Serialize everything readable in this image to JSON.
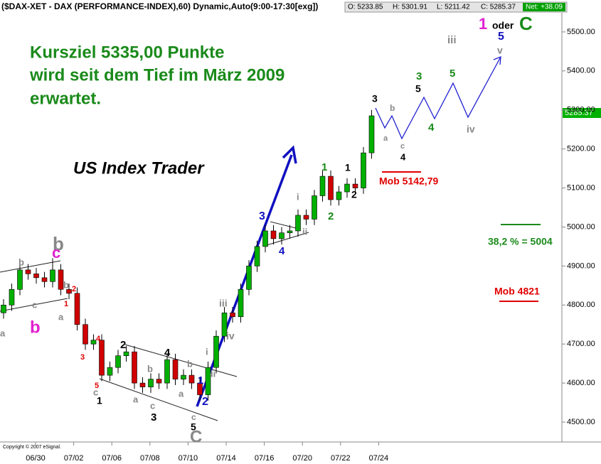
{
  "chart_data": {
    "type": "candlestick",
    "title": "($DAX-XET - DAX (PERFORMANCE-INDEX),60) Dynamic,Auto(9:00-17:30[exg])",
    "quote": [
      "O: 5233.85",
      "H: 5301.91",
      "L: 5211.42",
      "C: 5285.37",
      "Net: +38.09"
    ],
    "last_price": "5285.37",
    "copyright": "Copyright © 2007 eSignal.",
    "categories": [
      "06/30",
      "07/02",
      "07/06",
      "07/08",
      "07/10",
      "07/14",
      "07/16",
      "07/20",
      "07/22",
      "07/24"
    ],
    "up_color": "#00b000",
    "down_color": "#d00000",
    "open": [
      4780,
      4800,
      4840,
      4890,
      4880,
      4870,
      4860,
      4890,
      4840,
      4830,
      4750,
      4700,
      4710,
      4620,
      4640,
      4670,
      4680,
      4600,
      4590,
      4610,
      4600,
      4660,
      4610,
      4620,
      4600,
      4570,
      4640,
      4720,
      4780,
      4770,
      4840,
      4900,
      4950,
      4990,
      4970,
      4985,
      4990,
      5030,
      5020,
      5080,
      5130,
      5070,
      5090,
      5110,
      5100,
      5190
    ],
    "high": [
      4815,
      4855,
      4905,
      4905,
      4895,
      4885,
      4920,
      4905,
      4855,
      4845,
      4765,
      4725,
      4725,
      4655,
      4685,
      4695,
      4695,
      4615,
      4625,
      4625,
      4675,
      4675,
      4635,
      4635,
      4615,
      4655,
      4735,
      4795,
      4795,
      4855,
      4915,
      4965,
      5005,
      5005,
      5000,
      5005,
      5045,
      5045,
      5095,
      5145,
      5145,
      5105,
      5125,
      5125,
      5205,
      5300
    ],
    "low": [
      4765,
      4785,
      4825,
      4865,
      4855,
      4845,
      4845,
      4825,
      4815,
      4735,
      4685,
      4685,
      4605,
      4605,
      4625,
      4655,
      4585,
      4575,
      4575,
      4585,
      4585,
      4595,
      4595,
      4585,
      4555,
      4555,
      4625,
      4705,
      4755,
      4755,
      4825,
      4885,
      4935,
      4955,
      4955,
      4970,
      4975,
      5005,
      5005,
      5065,
      5055,
      5055,
      5075,
      5085,
      5085,
      5175
    ],
    "close": [
      4800,
      4840,
      4890,
      4880,
      4870,
      4860,
      4890,
      4840,
      4830,
      4750,
      4700,
      4710,
      4620,
      4640,
      4670,
      4680,
      4600,
      4590,
      4610,
      4600,
      4660,
      4610,
      4620,
      4600,
      4570,
      4640,
      4720,
      4780,
      4770,
      4840,
      4900,
      4950,
      4990,
      4970,
      4985,
      4990,
      5030,
      5020,
      5080,
      5130,
      5070,
      5090,
      5110,
      5100,
      5190,
      5285
    ],
    "ylim": [
      4449,
      5549
    ],
    "yticks": [
      {
        "value": 4500,
        "label": "4500.00"
      },
      {
        "value": 4600,
        "label": "4600.00"
      },
      {
        "value": 4700,
        "label": "4700.00"
      },
      {
        "value": 4800,
        "label": "4800.00"
      },
      {
        "value": 4900,
        "label": "4900.00"
      },
      {
        "value": 5000,
        "label": "5000.00"
      },
      {
        "value": 5100,
        "label": "5100.00"
      },
      {
        "value": 5200,
        "label": "5200.00"
      },
      {
        "value": 5300,
        "label": "5300.00"
      },
      {
        "value": 5400,
        "label": "5400.00"
      },
      {
        "value": 5500,
        "label": "5500.00"
      }
    ],
    "annotations": [
      "Kursziel 5335,00 Punkte",
      "wird seit dem Tief im März 2009",
      "erwartet.",
      "US Index Trader",
      "Mob 5142,79",
      "38,2 % = 5004",
      "Mob 4821",
      "1",
      "oder",
      "C",
      "5",
      "v",
      "iii",
      "5",
      "3",
      "5",
      "3",
      "a",
      "b",
      "c",
      "4",
      "4",
      "iv",
      "1",
      "1",
      "2",
      "2",
      "3",
      "4",
      "i",
      "ii",
      "iii",
      "iv",
      "ii",
      "i",
      "1",
      "2",
      "5",
      "C",
      "c",
      "4",
      "2",
      "3",
      "a",
      "b",
      "c",
      "b",
      "a",
      "5",
      "c",
      "1",
      "4",
      "3",
      "1",
      "2",
      "b",
      "a",
      "b",
      "c",
      "b",
      "c",
      "a",
      "b"
    ]
  }
}
